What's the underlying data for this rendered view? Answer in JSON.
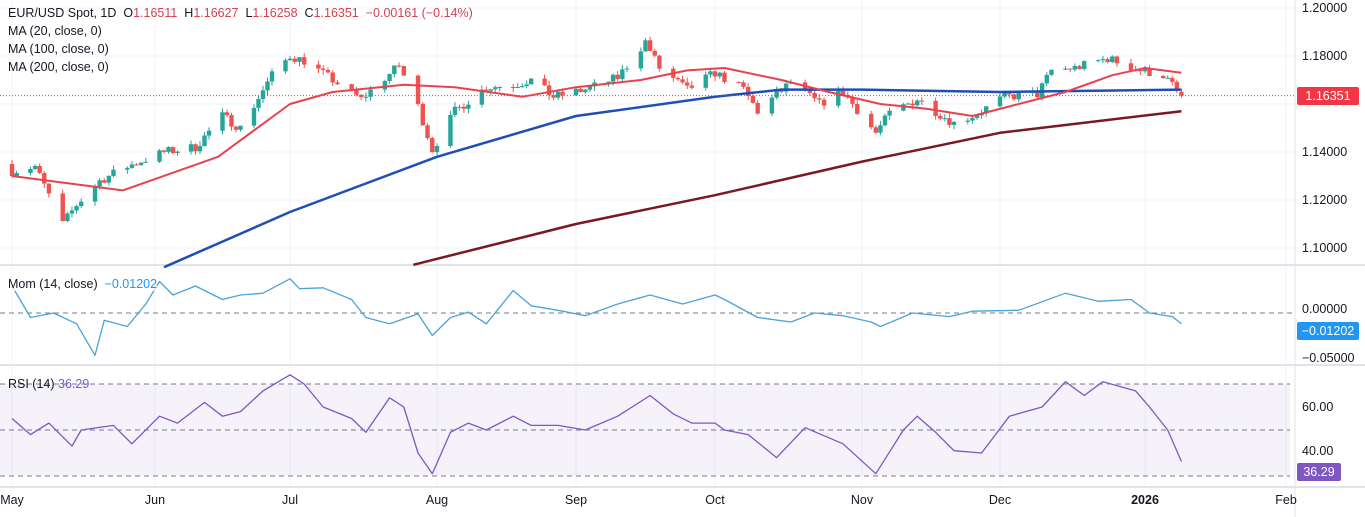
{
  "header": {
    "symbol": "EUR/USD Spot, 1D",
    "o_label": "O",
    "o": "1.16511",
    "h_label": "H",
    "h": "1.16627",
    "l_label": "L",
    "l": "1.16258",
    "c_label": "C",
    "c": "1.16351",
    "change": "−0.00161 (−0.14%)"
  },
  "indicators": {
    "ma20": "MA (20, close, 0)",
    "ma100": "MA (100, close, 0)",
    "ma200": "MA (200, close, 0)",
    "mom": "Mom (14, close)",
    "mom_value": "−0.01202",
    "rsi": "RSI (14)",
    "rsi_value": "36.29"
  },
  "colors": {
    "up": "#26a69a",
    "down": "#ef5350",
    "ma20": "#e8424f",
    "ma100": "#1f4fb5",
    "ma200": "#7a1a20",
    "mom": "#4aa3d9",
    "rsi": "#7e57c2",
    "last_price": "#f23645",
    "mom_badge": "#2196f3",
    "rsi_badge": "#7e57c2"
  },
  "chart_data": [
    {
      "type": "candlestick",
      "pane": "price",
      "ylim": [
        1.09,
        1.2
      ],
      "yticks": [
        "1.20000",
        "1.18000",
        "1.14000",
        "1.12000",
        "1.10000"
      ],
      "last_price": "1.16351",
      "last_bar": {
        "open": 1.16511,
        "high": 1.16627,
        "low": 1.16258,
        "close": 1.16351
      },
      "close_keypoints": [
        [
          "2025-05-01",
          1.132
        ],
        [
          "2025-05-06",
          1.134
        ],
        [
          "2025-05-12",
          1.11
        ],
        [
          "2025-05-15",
          1.118
        ],
        [
          "2025-05-20",
          1.128
        ],
        [
          "2025-05-26",
          1.134
        ],
        [
          "2025-06-03",
          1.14
        ],
        [
          "2025-06-10",
          1.142
        ],
        [
          "2025-06-16",
          1.155
        ],
        [
          "2025-06-20",
          1.15
        ],
        [
          "2025-06-27",
          1.172
        ],
        [
          "2025-07-01",
          1.18
        ],
        [
          "2025-07-04",
          1.178
        ],
        [
          "2025-07-10",
          1.17
        ],
        [
          "2025-07-16",
          1.162
        ],
        [
          "2025-07-24",
          1.176
        ],
        [
          "2025-07-28",
          1.159
        ],
        [
          "2025-07-31",
          1.141
        ],
        [
          "2025-08-05",
          1.157
        ],
        [
          "2025-08-12",
          1.167
        ],
        [
          "2025-08-18",
          1.168
        ],
        [
          "2025-08-22",
          1.17
        ],
        [
          "2025-08-27",
          1.163
        ],
        [
          "2025-09-03",
          1.166
        ],
        [
          "2025-09-10",
          1.171
        ],
        [
          "2025-09-16",
          1.186
        ],
        [
          "2025-09-19",
          1.175
        ],
        [
          "2025-09-25",
          1.166
        ],
        [
          "2025-10-01",
          1.173
        ],
        [
          "2025-10-07",
          1.166
        ],
        [
          "2025-10-10",
          1.157
        ],
        [
          "2025-10-17",
          1.169
        ],
        [
          "2025-10-23",
          1.16
        ],
        [
          "2025-10-28",
          1.165
        ],
        [
          "2025-11-04",
          1.148
        ],
        [
          "2025-11-07",
          1.156
        ],
        [
          "2025-11-13",
          1.162
        ],
        [
          "2025-11-21",
          1.152
        ],
        [
          "2025-11-26",
          1.156
        ],
        [
          "2025-12-02",
          1.163
        ],
        [
          "2025-12-09",
          1.164
        ],
        [
          "2025-12-12",
          1.174
        ],
        [
          "2025-12-17",
          1.175
        ],
        [
          "2025-12-24",
          1.179
        ],
        [
          "2025-12-31",
          1.174
        ],
        [
          "2026-01-05",
          1.172
        ],
        [
          "2026-01-09",
          1.16351
        ]
      ],
      "series": [
        {
          "name": "MA (20, close, 0)",
          "type": "line",
          "points": [
            [
              "2025-05-01",
              1.13
            ],
            [
              "2025-05-25",
              1.124
            ],
            [
              "2025-06-15",
              1.138
            ],
            [
              "2025-07-01",
              1.16
            ],
            [
              "2025-07-10",
              1.165
            ],
            [
              "2025-07-25",
              1.168
            ],
            [
              "2025-08-05",
              1.167
            ],
            [
              "2025-08-20",
              1.163
            ],
            [
              "2025-09-01",
              1.167
            ],
            [
              "2025-09-15",
              1.17
            ],
            [
              "2025-09-25",
              1.174
            ],
            [
              "2025-10-03",
              1.175
            ],
            [
              "2025-10-15",
              1.17
            ],
            [
              "2025-10-25",
              1.165
            ],
            [
              "2025-11-05",
              1.16
            ],
            [
              "2025-11-15",
              1.158
            ],
            [
              "2025-11-25",
              1.155
            ],
            [
              "2025-12-05",
              1.16
            ],
            [
              "2025-12-15",
              1.165
            ],
            [
              "2025-12-25",
              1.172
            ],
            [
              "2026-01-01",
              1.175
            ],
            [
              "2026-01-09",
              1.173
            ]
          ]
        },
        {
          "name": "MA (100, close, 0)",
          "type": "line",
          "points": [
            [
              "2025-06-03",
              1.092
            ],
            [
              "2025-07-01",
              1.115
            ],
            [
              "2025-08-01",
              1.138
            ],
            [
              "2025-09-01",
              1.155
            ],
            [
              "2025-10-01",
              1.163
            ],
            [
              "2025-10-15",
              1.166
            ],
            [
              "2025-11-01",
              1.166
            ],
            [
              "2025-12-01",
              1.165
            ],
            [
              "2026-01-09",
              1.166
            ]
          ]
        },
        {
          "name": "MA (200, close, 0)",
          "type": "line",
          "points": [
            [
              "2025-07-27",
              1.093
            ],
            [
              "2025-09-01",
              1.11
            ],
            [
              "2025-10-01",
              1.122
            ],
            [
              "2025-11-01",
              1.136
            ],
            [
              "2025-12-01",
              1.148
            ],
            [
              "2026-01-09",
              1.157
            ]
          ]
        }
      ]
    },
    {
      "type": "line",
      "pane": "momentum",
      "name": "Mom (14, close)",
      "yticks": [
        "0.00000",
        "−0.05000"
      ],
      "ylim": [
        -0.05,
        0.04
      ],
      "points": [
        [
          "2025-05-01",
          0.03
        ],
        [
          "2025-05-05",
          -0.005
        ],
        [
          "2025-05-10",
          0.0
        ],
        [
          "2025-05-15",
          -0.012
        ],
        [
          "2025-05-19",
          -0.047
        ],
        [
          "2025-05-21",
          -0.008
        ],
        [
          "2025-05-26",
          -0.015
        ],
        [
          "2025-05-30",
          0.01
        ],
        [
          "2025-06-02",
          0.035
        ],
        [
          "2025-06-05",
          0.02
        ],
        [
          "2025-06-10",
          0.03
        ],
        [
          "2025-06-16",
          0.015
        ],
        [
          "2025-06-20",
          0.02
        ],
        [
          "2025-06-25",
          0.022
        ],
        [
          "2025-07-01",
          0.038
        ],
        [
          "2025-07-03",
          0.027
        ],
        [
          "2025-07-08",
          0.028
        ],
        [
          "2025-07-14",
          0.015
        ],
        [
          "2025-07-17",
          -0.005
        ],
        [
          "2025-07-22",
          -0.012
        ],
        [
          "2025-07-28",
          -0.001
        ],
        [
          "2025-07-31",
          -0.025
        ],
        [
          "2025-08-04",
          -0.005
        ],
        [
          "2025-08-08",
          0.001
        ],
        [
          "2025-08-12",
          -0.012
        ],
        [
          "2025-08-18",
          0.025
        ],
        [
          "2025-08-22",
          0.008
        ],
        [
          "2025-08-28",
          0.003
        ],
        [
          "2025-09-03",
          -0.003
        ],
        [
          "2025-09-10",
          0.01
        ],
        [
          "2025-09-17",
          0.02
        ],
        [
          "2025-09-24",
          0.01
        ],
        [
          "2025-10-01",
          0.02
        ],
        [
          "2025-10-03",
          0.015
        ],
        [
          "2025-10-10",
          -0.005
        ],
        [
          "2025-10-17",
          -0.01
        ],
        [
          "2025-10-22",
          0.0
        ],
        [
          "2025-10-28",
          -0.003
        ],
        [
          "2025-11-03",
          -0.01
        ],
        [
          "2025-11-05",
          -0.015
        ],
        [
          "2025-11-12",
          0.0
        ],
        [
          "2025-11-20",
          -0.004
        ],
        [
          "2025-11-25",
          0.002
        ],
        [
          "2025-12-05",
          0.003
        ],
        [
          "2025-12-15",
          0.022
        ],
        [
          "2025-12-22",
          0.013
        ],
        [
          "2025-12-29",
          0.015
        ],
        [
          "2026-01-02",
          0.0
        ],
        [
          "2026-01-07",
          -0.004
        ],
        [
          "2026-01-09",
          -0.01202
        ]
      ]
    },
    {
      "type": "line",
      "pane": "rsi",
      "name": "RSI (14)",
      "yticks": [
        "60.00",
        "40.00"
      ],
      "bands": [
        70,
        50,
        30
      ],
      "points": [
        [
          "2025-05-01",
          55
        ],
        [
          "2025-05-05",
          48
        ],
        [
          "2025-05-09",
          53
        ],
        [
          "2025-05-14",
          43
        ],
        [
          "2025-05-16",
          50
        ],
        [
          "2025-05-23",
          52
        ],
        [
          "2025-05-27",
          44
        ],
        [
          "2025-06-02",
          56
        ],
        [
          "2025-06-06",
          53
        ],
        [
          "2025-06-12",
          62
        ],
        [
          "2025-06-16",
          56
        ],
        [
          "2025-06-20",
          58
        ],
        [
          "2025-06-25",
          67
        ],
        [
          "2025-07-01",
          74
        ],
        [
          "2025-07-04",
          70
        ],
        [
          "2025-07-08",
          60
        ],
        [
          "2025-07-14",
          55
        ],
        [
          "2025-07-17",
          49
        ],
        [
          "2025-07-22",
          64
        ],
        [
          "2025-07-25",
          60
        ],
        [
          "2025-07-28",
          40
        ],
        [
          "2025-07-31",
          31
        ],
        [
          "2025-08-04",
          49
        ],
        [
          "2025-08-08",
          53
        ],
        [
          "2025-08-12",
          50
        ],
        [
          "2025-08-18",
          56
        ],
        [
          "2025-08-22",
          52
        ],
        [
          "2025-08-28",
          52
        ],
        [
          "2025-09-03",
          50
        ],
        [
          "2025-09-10",
          56
        ],
        [
          "2025-09-17",
          65
        ],
        [
          "2025-09-22",
          57
        ],
        [
          "2025-09-26",
          53
        ],
        [
          "2025-10-01",
          53
        ],
        [
          "2025-10-03",
          50
        ],
        [
          "2025-10-08",
          48
        ],
        [
          "2025-10-14",
          38
        ],
        [
          "2025-10-20",
          51
        ],
        [
          "2025-10-28",
          44
        ],
        [
          "2025-11-04",
          31
        ],
        [
          "2025-11-10",
          50
        ],
        [
          "2025-11-13",
          56
        ],
        [
          "2025-11-17",
          49
        ],
        [
          "2025-11-21",
          41
        ],
        [
          "2025-11-27",
          40
        ],
        [
          "2025-12-03",
          56
        ],
        [
          "2025-12-10",
          60
        ],
        [
          "2025-12-15",
          71
        ],
        [
          "2025-12-19",
          65
        ],
        [
          "2025-12-23",
          71
        ],
        [
          "2025-12-30",
          67
        ],
        [
          "2026-01-02",
          60
        ],
        [
          "2026-01-06",
          50
        ],
        [
          "2026-01-09",
          36.29
        ]
      ]
    },
    {
      "type": "time_axis",
      "ticks": [
        "May",
        "Jun",
        "Jul",
        "Aug",
        "Sep",
        "Oct",
        "Nov",
        "Dec",
        "2026",
        "Feb"
      ]
    }
  ]
}
